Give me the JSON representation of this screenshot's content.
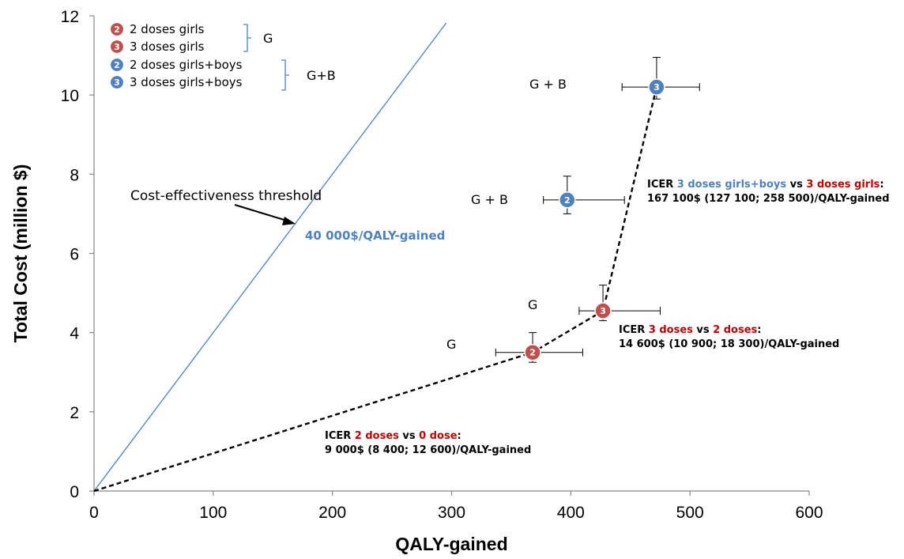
{
  "chart_data": {
    "type": "scatter",
    "xlabel": "QALY-gained",
    "ylabel": "Total Cost (million $)",
    "xlim": [
      0,
      600
    ],
    "ylim": [
      0,
      12
    ],
    "x_ticks": [
      "0",
      "100",
      "200",
      "300",
      "400",
      "500",
      "600"
    ],
    "y_ticks": [
      "0",
      "2",
      "4",
      "6",
      "8",
      "10",
      "12"
    ],
    "grid": false,
    "legend_position": "top-left",
    "legend": [
      {
        "marker": "2",
        "label": "2 doses girls",
        "color": "#c0504d"
      },
      {
        "marker": "3",
        "label": "3 doses girls",
        "color": "#c0504d"
      },
      {
        "marker": "2",
        "label": "2 doses girls+boys",
        "color": "#4f81bd"
      },
      {
        "marker": "3",
        "label": "3 doses girls+boys",
        "color": "#4f81bd"
      }
    ],
    "legend_groups": [
      {
        "label": "G",
        "color": "#4f81bd"
      },
      {
        "label": "G+B",
        "color": "#4f81bd"
      }
    ],
    "points": [
      {
        "marker": "2",
        "group": "G",
        "x": 368,
        "y": 3.5,
        "x_err": [
          337,
          410
        ],
        "y_err": [
          3.25,
          4.0
        ],
        "color": "#c0504d"
      },
      {
        "marker": "3",
        "group": "G",
        "x": 427,
        "y": 4.55,
        "x_err": [
          407,
          475
        ],
        "y_err": [
          4.3,
          5.2
        ],
        "color": "#c0504d"
      },
      {
        "marker": "2",
        "group": "G + B",
        "x": 397,
        "y": 7.35,
        "x_err": [
          377,
          445
        ],
        "y_err": [
          7.0,
          7.95
        ],
        "color": "#4f81bd"
      },
      {
        "marker": "3",
        "group": "G + B",
        "x": 472,
        "y": 10.2,
        "x_err": [
          443,
          508
        ],
        "y_err": [
          9.9,
          10.95
        ],
        "color": "#4f81bd"
      }
    ],
    "frontier": {
      "x": [
        0,
        368,
        427,
        472
      ],
      "y": [
        0,
        3.5,
        4.55,
        10.2
      ]
    },
    "threshold": {
      "label": "Cost-effectiveness threshold",
      "value_label": "40 000$/QALY-gained",
      "slope_million_per_qaly": 0.04,
      "color": "#4f81bd"
    },
    "annotations": [
      {
        "segments": [
          {
            "text": "ICER ",
            "color": "#000000"
          },
          {
            "text": "2 doses",
            "color": "#c00000"
          },
          {
            "text": " vs ",
            "color": "#000000"
          },
          {
            "text": "0 dose",
            "color": "#c00000"
          },
          {
            "text": ":",
            "color": "#000000"
          }
        ],
        "line2": "9 000$ (8 400; 12 600)/QALY-gained"
      },
      {
        "segments": [
          {
            "text": "ICER ",
            "color": "#000000"
          },
          {
            "text": "3 doses",
            "color": "#c00000"
          },
          {
            "text": " vs ",
            "color": "#000000"
          },
          {
            "text": "2 doses",
            "color": "#c00000"
          },
          {
            "text": ":",
            "color": "#000000"
          }
        ],
        "line2": "14 600$ (10 900; 18 300)/QALY-gained"
      },
      {
        "segments": [
          {
            "text": "ICER ",
            "color": "#000000"
          },
          {
            "text": "3 doses girls+boys",
            "color": "#4f81bd"
          },
          {
            "text": " vs ",
            "color": "#000000"
          },
          {
            "text": "3 doses girls",
            "color": "#c00000"
          },
          {
            "text": ":",
            "color": "#000000"
          }
        ],
        "line2": "167 100$ (127 100; 258 500)/QALY-gained"
      }
    ]
  }
}
